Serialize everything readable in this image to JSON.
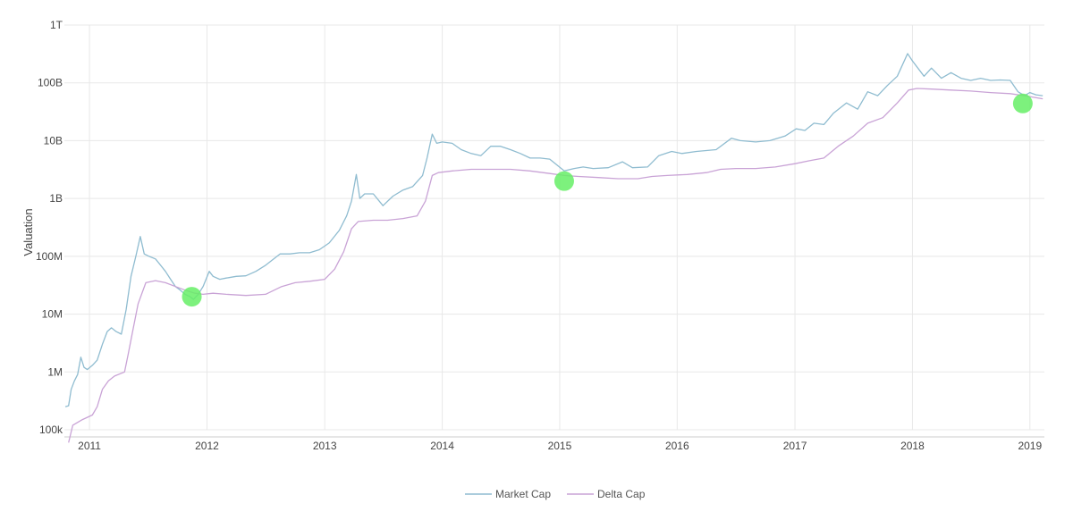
{
  "chart_data": {
    "type": "line",
    "ylabel": "Valuation",
    "yscale": "log",
    "ylim": [
      100000,
      1000000000000
    ],
    "y_ticks": [
      {
        "value": 100000,
        "label": "100k"
      },
      {
        "value": 1000000,
        "label": "1M"
      },
      {
        "value": 10000000,
        "label": "10M"
      },
      {
        "value": 100000000,
        "label": "100M"
      },
      {
        "value": 1000000000,
        "label": "1B"
      },
      {
        "value": 10000000000,
        "label": "10B"
      },
      {
        "value": 100000000000,
        "label": "100B"
      },
      {
        "value": 1000000000000,
        "label": "1T"
      }
    ],
    "xlim": [
      "2010-10-15",
      "2019-02-15"
    ],
    "x_ticks": [
      {
        "value": "2011-01-01",
        "label": "2011"
      },
      {
        "value": "2012-01-01",
        "label": "2012"
      },
      {
        "value": "2013-01-01",
        "label": "2013"
      },
      {
        "value": "2014-01-01",
        "label": "2014"
      },
      {
        "value": "2015-01-01",
        "label": "2015"
      },
      {
        "value": "2016-01-01",
        "label": "2016"
      },
      {
        "value": "2017-01-01",
        "label": "2017"
      },
      {
        "value": "2018-01-01",
        "label": "2018"
      },
      {
        "value": "2019-01-01",
        "label": "2019"
      }
    ],
    "grid": true,
    "legend_position": "bottom-center",
    "series": [
      {
        "name": "Market Cap",
        "color": "#8fbcd0",
        "points": [
          [
            "2010-10-18",
            250000
          ],
          [
            "2010-10-28",
            260000
          ],
          [
            "2010-11-05",
            500000
          ],
          [
            "2010-11-15",
            700000
          ],
          [
            "2010-11-25",
            900000
          ],
          [
            "2010-12-05",
            1800000
          ],
          [
            "2010-12-15",
            1200000
          ],
          [
            "2010-12-25",
            1100000
          ],
          [
            "2011-01-10",
            1300000
          ],
          [
            "2011-01-25",
            1600000
          ],
          [
            "2011-02-10",
            3000000
          ],
          [
            "2011-02-25",
            5000000
          ],
          [
            "2011-03-10",
            5800000
          ],
          [
            "2011-03-25",
            5000000
          ],
          [
            "2011-04-10",
            4500000
          ],
          [
            "2011-04-25",
            12000000
          ],
          [
            "2011-05-10",
            45000000
          ],
          [
            "2011-05-25",
            100000000
          ],
          [
            "2011-06-08",
            220000000
          ],
          [
            "2011-06-20",
            110000000
          ],
          [
            "2011-07-05",
            100000000
          ],
          [
            "2011-07-25",
            90000000
          ],
          [
            "2011-08-10",
            70000000
          ],
          [
            "2011-08-25",
            55000000
          ],
          [
            "2011-09-10",
            40000000
          ],
          [
            "2011-09-25",
            30000000
          ],
          [
            "2011-10-10",
            26000000
          ],
          [
            "2011-10-25",
            22000000
          ],
          [
            "2011-11-10",
            20000000
          ],
          [
            "2011-11-20",
            18000000
          ],
          [
            "2011-12-05",
            22000000
          ],
          [
            "2011-12-20",
            30000000
          ],
          [
            "2012-01-08",
            55000000
          ],
          [
            "2012-01-20",
            45000000
          ],
          [
            "2012-02-10",
            40000000
          ],
          [
            "2012-03-01",
            42000000
          ],
          [
            "2012-04-01",
            45000000
          ],
          [
            "2012-05-01",
            46000000
          ],
          [
            "2012-06-01",
            55000000
          ],
          [
            "2012-07-01",
            70000000
          ],
          [
            "2012-08-15",
            110000000
          ],
          [
            "2012-09-15",
            110000000
          ],
          [
            "2012-10-15",
            115000000
          ],
          [
            "2012-11-15",
            115000000
          ],
          [
            "2012-12-15",
            130000000
          ],
          [
            "2013-01-15",
            170000000
          ],
          [
            "2013-02-15",
            280000000
          ],
          [
            "2013-03-10",
            500000000
          ],
          [
            "2013-03-25",
            900000000
          ],
          [
            "2013-04-09",
            2600000000
          ],
          [
            "2013-04-20",
            1000000000
          ],
          [
            "2013-05-05",
            1200000000
          ],
          [
            "2013-06-01",
            1200000000
          ],
          [
            "2013-07-01",
            750000000
          ],
          [
            "2013-08-01",
            1100000000
          ],
          [
            "2013-09-01",
            1400000000
          ],
          [
            "2013-10-01",
            1600000000
          ],
          [
            "2013-11-01",
            2500000000
          ],
          [
            "2013-11-15",
            5000000000
          ],
          [
            "2013-12-01",
            13000000000
          ],
          [
            "2013-12-15",
            9000000000
          ],
          [
            "2014-01-01",
            9500000000
          ],
          [
            "2014-02-01",
            9000000000
          ],
          [
            "2014-03-01",
            7000000000
          ],
          [
            "2014-04-01",
            6000000000
          ],
          [
            "2014-05-01",
            5500000000
          ],
          [
            "2014-06-01",
            8000000000
          ],
          [
            "2014-07-01",
            8000000000
          ],
          [
            "2014-08-01",
            7000000000
          ],
          [
            "2014-09-01",
            6000000000
          ],
          [
            "2014-10-01",
            5000000000
          ],
          [
            "2014-11-01",
            5000000000
          ],
          [
            "2014-12-01",
            4800000000
          ],
          [
            "2015-01-15",
            3000000000
          ],
          [
            "2015-02-15",
            3300000000
          ],
          [
            "2015-03-15",
            3500000000
          ],
          [
            "2015-04-15",
            3300000000
          ],
          [
            "2015-06-01",
            3400000000
          ],
          [
            "2015-07-15",
            4300000000
          ],
          [
            "2015-08-15",
            3400000000
          ],
          [
            "2015-10-01",
            3500000000
          ],
          [
            "2015-11-05",
            5500000000
          ],
          [
            "2015-12-15",
            6500000000
          ],
          [
            "2016-01-15",
            6000000000
          ],
          [
            "2016-03-01",
            6500000000
          ],
          [
            "2016-05-01",
            7000000000
          ],
          [
            "2016-06-18",
            11000000000
          ],
          [
            "2016-07-15",
            10000000000
          ],
          [
            "2016-09-01",
            9500000000
          ],
          [
            "2016-10-15",
            10000000000
          ],
          [
            "2016-12-01",
            12000000000
          ],
          [
            "2017-01-05",
            16000000000
          ],
          [
            "2017-02-01",
            15000000000
          ],
          [
            "2017-03-01",
            20000000000
          ],
          [
            "2017-04-01",
            19000000000
          ],
          [
            "2017-05-01",
            30000000000
          ],
          [
            "2017-06-10",
            45000000000
          ],
          [
            "2017-07-15",
            35000000000
          ],
          [
            "2017-08-15",
            70000000000
          ],
          [
            "2017-09-15",
            60000000000
          ],
          [
            "2017-10-15",
            90000000000
          ],
          [
            "2017-11-15",
            130000000000
          ],
          [
            "2017-12-17",
            320000000000
          ],
          [
            "2018-01-01",
            240000000000
          ],
          [
            "2018-02-06",
            130000000000
          ],
          [
            "2018-03-01",
            180000000000
          ],
          [
            "2018-04-01",
            120000000000
          ],
          [
            "2018-05-01",
            150000000000
          ],
          [
            "2018-06-01",
            120000000000
          ],
          [
            "2018-07-01",
            110000000000
          ],
          [
            "2018-08-01",
            120000000000
          ],
          [
            "2018-09-01",
            110000000000
          ],
          [
            "2018-10-01",
            112000000000
          ],
          [
            "2018-11-01",
            110000000000
          ],
          [
            "2018-11-25",
            70000000000
          ],
          [
            "2018-12-15",
            60000000000
          ],
          [
            "2019-01-01",
            68000000000
          ],
          [
            "2019-01-20",
            62000000000
          ],
          [
            "2019-02-10",
            60000000000
          ]
        ]
      },
      {
        "name": "Delta Cap",
        "color": "#c9a3d6",
        "points": [
          [
            "2010-10-28",
            60000
          ],
          [
            "2010-11-10",
            120000
          ],
          [
            "2010-12-10",
            150000
          ],
          [
            "2011-01-10",
            180000
          ],
          [
            "2011-01-25",
            250000
          ],
          [
            "2011-02-10",
            500000
          ],
          [
            "2011-03-01",
            700000
          ],
          [
            "2011-03-20",
            850000
          ],
          [
            "2011-04-20",
            1000000
          ],
          [
            "2011-05-01",
            2000000
          ],
          [
            "2011-05-15",
            5000000
          ],
          [
            "2011-06-01",
            15000000
          ],
          [
            "2011-06-25",
            35000000
          ],
          [
            "2011-07-25",
            38000000
          ],
          [
            "2011-08-25",
            35000000
          ],
          [
            "2011-09-25",
            30000000
          ],
          [
            "2011-10-25",
            26000000
          ],
          [
            "2011-11-25",
            23000000
          ],
          [
            "2011-12-20",
            22000000
          ],
          [
            "2012-01-20",
            23000000
          ],
          [
            "2012-03-01",
            22000000
          ],
          [
            "2012-05-01",
            21000000
          ],
          [
            "2012-07-01",
            22000000
          ],
          [
            "2012-08-20",
            30000000
          ],
          [
            "2012-10-01",
            35000000
          ],
          [
            "2012-11-15",
            37000000
          ],
          [
            "2013-01-01",
            40000000
          ],
          [
            "2013-02-01",
            60000000
          ],
          [
            "2013-03-01",
            120000000
          ],
          [
            "2013-03-25",
            300000000
          ],
          [
            "2013-04-15",
            400000000
          ],
          [
            "2013-06-01",
            420000000
          ],
          [
            "2013-07-15",
            420000000
          ],
          [
            "2013-09-01",
            450000000
          ],
          [
            "2013-10-15",
            500000000
          ],
          [
            "2013-11-10",
            900000000
          ],
          [
            "2013-12-01",
            2500000000
          ],
          [
            "2013-12-20",
            2800000000
          ],
          [
            "2014-02-01",
            3000000000
          ],
          [
            "2014-04-01",
            3200000000
          ],
          [
            "2014-06-01",
            3200000000
          ],
          [
            "2014-08-01",
            3200000000
          ],
          [
            "2014-10-01",
            3000000000
          ],
          [
            "2014-12-01",
            2700000000
          ],
          [
            "2015-01-15",
            2500000000
          ],
          [
            "2015-03-01",
            2400000000
          ],
          [
            "2015-05-01",
            2300000000
          ],
          [
            "2015-07-01",
            2200000000
          ],
          [
            "2015-09-01",
            2200000000
          ],
          [
            "2015-10-15",
            2400000000
          ],
          [
            "2015-12-01",
            2500000000
          ],
          [
            "2016-02-01",
            2600000000
          ],
          [
            "2016-04-01",
            2800000000
          ],
          [
            "2016-05-15",
            3200000000
          ],
          [
            "2016-07-01",
            3300000000
          ],
          [
            "2016-09-01",
            3300000000
          ],
          [
            "2016-11-01",
            3500000000
          ],
          [
            "2017-01-01",
            4000000000
          ],
          [
            "2017-02-15",
            4500000000
          ],
          [
            "2017-04-01",
            5000000000
          ],
          [
            "2017-05-15",
            8000000000
          ],
          [
            "2017-07-01",
            12000000000
          ],
          [
            "2017-08-15",
            20000000000
          ],
          [
            "2017-10-01",
            25000000000
          ],
          [
            "2017-11-15",
            45000000000
          ],
          [
            "2017-12-20",
            75000000000
          ],
          [
            "2018-01-15",
            80000000000
          ],
          [
            "2018-03-01",
            78000000000
          ],
          [
            "2018-05-01",
            75000000000
          ],
          [
            "2018-07-01",
            72000000000
          ],
          [
            "2018-09-01",
            68000000000
          ],
          [
            "2018-11-01",
            65000000000
          ],
          [
            "2018-12-15",
            60000000000
          ],
          [
            "2019-01-15",
            56000000000
          ],
          [
            "2019-02-10",
            53000000000
          ]
        ]
      }
    ],
    "highlights": [
      {
        "date": "2011-11-15",
        "value": 20000000,
        "color": "#66ee66"
      },
      {
        "date": "2015-01-15",
        "value": 2000000000,
        "color": "#66ee66"
      },
      {
        "date": "2018-12-10",
        "value": 44000000000,
        "color": "#66ee66"
      }
    ]
  }
}
